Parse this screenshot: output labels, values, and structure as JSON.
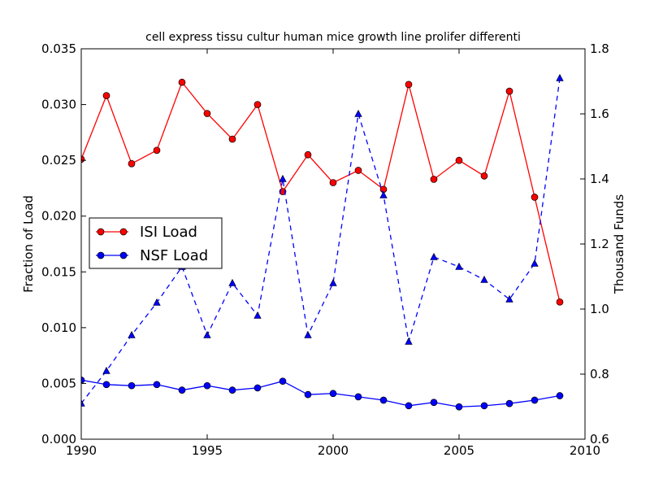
{
  "chart_data": {
    "type": "line",
    "title": "cell express tissu cultur human mice growth line prolifer differenti",
    "xlabel": "",
    "ylabel": "Fraction of Load",
    "y2label": "Thousand Funds",
    "xlim": [
      1990,
      2010
    ],
    "ylim": [
      0,
      0.035
    ],
    "y2lim": [
      0.6,
      1.8
    ],
    "x_ticks": [
      "1990",
      "1995",
      "2000",
      "2005",
      "2010"
    ],
    "y_ticks": [
      "0.000",
      "0.005",
      "0.010",
      "0.015",
      "0.020",
      "0.025",
      "0.030",
      "0.035"
    ],
    "y2_ticks": [
      "0.6",
      "0.8",
      "1.0",
      "1.2",
      "1.4",
      "1.6",
      "1.8"
    ],
    "legend_position": "center-left",
    "grid": false,
    "x": [
      1990,
      1991,
      1992,
      1993,
      1994,
      1995,
      1996,
      1997,
      1998,
      1999,
      2000,
      2001,
      2002,
      2003,
      2004,
      2005,
      2006,
      2007,
      2008,
      2009
    ],
    "series": [
      {
        "name": "ISI Load",
        "axis": "left",
        "color": "#ff0000",
        "style": "solid",
        "marker": "circle",
        "values": [
          0.0251,
          0.0308,
          0.0247,
          0.0259,
          0.032,
          0.0292,
          0.0269,
          0.03,
          0.0222,
          0.0255,
          0.023,
          0.0241,
          0.0224,
          0.0318,
          0.0233,
          0.025,
          0.0236,
          0.0312,
          0.0217,
          0.0123
        ]
      },
      {
        "name": "NSF Load",
        "axis": "left",
        "color": "#0000ff",
        "style": "solid",
        "marker": "circle",
        "values": [
          0.0053,
          0.0049,
          0.0048,
          0.0049,
          0.0044,
          0.0048,
          0.0044,
          0.0046,
          0.0052,
          0.004,
          0.0041,
          0.0038,
          0.0035,
          0.003,
          0.0033,
          0.0029,
          0.003,
          0.0032,
          0.0035,
          0.0039
        ]
      },
      {
        "axis": "right",
        "color": "#0000ff",
        "style": "dashed",
        "marker": "triangle",
        "values": [
          0.71,
          0.81,
          0.92,
          1.02,
          1.13,
          0.92,
          1.08,
          0.98,
          1.4,
          0.92,
          1.08,
          1.6,
          1.35,
          0.9,
          1.16,
          1.13,
          1.09,
          1.03,
          1.14,
          1.71
        ]
      }
    ]
  }
}
